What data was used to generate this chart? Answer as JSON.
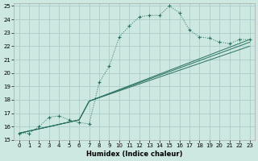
{
  "background_color": "#cce8e0",
  "grid_color": "#aacccc",
  "line_color": "#2a7060",
  "xlabel": "Humidex (Indice chaleur)",
  "xlim": [
    -0.5,
    23.5
  ],
  "ylim": [
    15,
    25.2
  ],
  "xticks": [
    0,
    1,
    2,
    3,
    4,
    5,
    6,
    7,
    8,
    9,
    10,
    11,
    12,
    13,
    14,
    15,
    16,
    17,
    18,
    19,
    20,
    21,
    22,
    23
  ],
  "yticks": [
    15,
    16,
    17,
    18,
    19,
    20,
    21,
    22,
    23,
    24,
    25
  ],
  "series": [
    {
      "x": [
        0,
        1,
        2,
        3,
        4,
        5,
        6,
        7,
        8,
        9,
        10,
        11,
        12,
        13,
        14,
        15,
        16,
        17,
        18,
        19,
        20,
        21,
        22,
        23
      ],
      "y": [
        15.5,
        15.5,
        16.0,
        16.7,
        16.8,
        16.5,
        16.3,
        16.2,
        19.3,
        20.5,
        22.7,
        23.5,
        24.2,
        24.3,
        24.3,
        25.0,
        24.5,
        23.2,
        22.7,
        22.6,
        22.3,
        22.2,
        22.5,
        22.5
      ],
      "marker": "+",
      "linestyle": ":"
    },
    {
      "x": [
        0,
        6,
        7,
        23
      ],
      "y": [
        15.5,
        16.5,
        17.9,
        22.5
      ],
      "marker": null,
      "linestyle": "-"
    },
    {
      "x": [
        0,
        6,
        7,
        23
      ],
      "y": [
        15.5,
        16.5,
        17.9,
        22.3
      ],
      "marker": null,
      "linestyle": "-"
    },
    {
      "x": [
        0,
        6,
        7,
        23
      ],
      "y": [
        15.5,
        16.5,
        17.9,
        22.0
      ],
      "marker": null,
      "linestyle": "-"
    }
  ]
}
